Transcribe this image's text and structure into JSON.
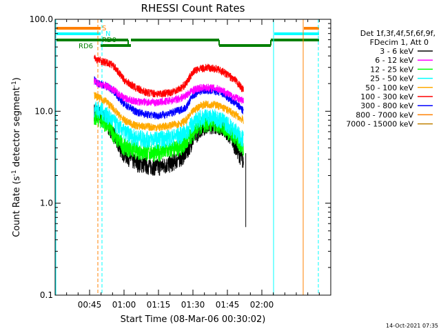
{
  "chart_data": {
    "type": "line",
    "title": "RHESSI Count Rates",
    "xlabel": "Start Time (08-Mar-06 00:30:02)",
    "ylabel_parts": [
      "Count Rate (s",
      "-1",
      " detector segment",
      "-1",
      ")"
    ],
    "y_scale": "log",
    "ylim": [
      0.1,
      100.0
    ],
    "y_ticks": [
      {
        "value": 0.1,
        "label": "0.1"
      },
      {
        "value": 1.0,
        "label": "1.0"
      },
      {
        "value": 10.0,
        "label": "10.0"
      },
      {
        "value": 100.0,
        "label": "100.0"
      }
    ],
    "xlim_minutes": [
      30,
      150
    ],
    "x_ticks": [
      {
        "value": 45,
        "label": "00:45"
      },
      {
        "value": 60,
        "label": "01:00"
      },
      {
        "value": 75,
        "label": "01:15"
      },
      {
        "value": 90,
        "label": "01:30"
      },
      {
        "value": 105,
        "label": "01:45"
      },
      {
        "value": 120,
        "label": "02:00"
      }
    ],
    "legend_header": [
      "Det 1f,3f,4f,5f,6f,9f,",
      "FDecim 1, Att 0"
    ],
    "series": [
      {
        "name": "3 - 6 keV",
        "color": "#000000",
        "points": [
          [
            47,
            10
          ],
          [
            49,
            9.5
          ],
          [
            52,
            8
          ],
          [
            55,
            6
          ],
          [
            57,
            4.5
          ],
          [
            60,
            3.5
          ],
          [
            65,
            2.8
          ],
          [
            70,
            2.6
          ],
          [
            75,
            2.5
          ],
          [
            80,
            2.7
          ],
          [
            85,
            3.2
          ],
          [
            87,
            3.6
          ],
          [
            90,
            5
          ],
          [
            93,
            6.5
          ],
          [
            96,
            7.2
          ],
          [
            100,
            7.2
          ],
          [
            103,
            6.8
          ],
          [
            106,
            5.5
          ],
          [
            109,
            4
          ],
          [
            112,
            2.8
          ]
        ]
      },
      {
        "name": "6 - 12 keV",
        "color": "#ff00ff",
        "points": [
          [
            47,
            21
          ],
          [
            49,
            20
          ],
          [
            52,
            19
          ],
          [
            55,
            17.5
          ],
          [
            57,
            16
          ],
          [
            60,
            14
          ],
          [
            65,
            12.8
          ],
          [
            70,
            12.6
          ],
          [
            75,
            12.5
          ],
          [
            80,
            13
          ],
          [
            85,
            14
          ],
          [
            87,
            15
          ],
          [
            90,
            17
          ],
          [
            93,
            18
          ],
          [
            96,
            18.2
          ],
          [
            100,
            17.8
          ],
          [
            103,
            17
          ],
          [
            106,
            15
          ],
          [
            109,
            14
          ],
          [
            112,
            13
          ]
        ]
      },
      {
        "name": "12 - 25 keV",
        "color": "#00ff00",
        "points": [
          [
            47,
            9
          ],
          [
            49,
            8.5
          ],
          [
            52,
            7.5
          ],
          [
            55,
            6
          ],
          [
            57,
            5
          ],
          [
            60,
            4.2
          ],
          [
            65,
            3.8
          ],
          [
            70,
            3.6
          ],
          [
            75,
            3.6
          ],
          [
            80,
            3.8
          ],
          [
            85,
            4.2
          ],
          [
            87,
            4.7
          ],
          [
            90,
            6
          ],
          [
            93,
            7
          ],
          [
            96,
            7.5
          ],
          [
            100,
            7.4
          ],
          [
            103,
            7
          ],
          [
            106,
            6
          ],
          [
            109,
            5
          ],
          [
            112,
            4
          ]
        ]
      },
      {
        "name": "25 - 50 keV",
        "color": "#00ffff",
        "points": [
          [
            47,
            11
          ],
          [
            49,
            10.5
          ],
          [
            52,
            9.5
          ],
          [
            55,
            8
          ],
          [
            57,
            7
          ],
          [
            60,
            6
          ],
          [
            65,
            5.2
          ],
          [
            70,
            5
          ],
          [
            75,
            5
          ],
          [
            80,
            5.2
          ],
          [
            85,
            5.6
          ],
          [
            87,
            6
          ],
          [
            90,
            7.5
          ],
          [
            93,
            8.5
          ],
          [
            96,
            8.8
          ],
          [
            100,
            8.6
          ],
          [
            103,
            8
          ],
          [
            106,
            7
          ],
          [
            109,
            6
          ],
          [
            112,
            5
          ]
        ]
      },
      {
        "name": "50 - 100 keV",
        "color": "#ffaa00",
        "points": [
          [
            47,
            15
          ],
          [
            49,
            14
          ],
          [
            52,
            13
          ],
          [
            55,
            11
          ],
          [
            57,
            9.5
          ],
          [
            60,
            8
          ],
          [
            65,
            7
          ],
          [
            70,
            6.8
          ],
          [
            75,
            6.7
          ],
          [
            80,
            7
          ],
          [
            85,
            7.5
          ],
          [
            87,
            8
          ],
          [
            90,
            10
          ],
          [
            93,
            11.5
          ],
          [
            96,
            12
          ],
          [
            100,
            11.8
          ],
          [
            103,
            11
          ],
          [
            106,
            10
          ],
          [
            109,
            9
          ],
          [
            112,
            8
          ]
        ]
      },
      {
        "name": "100 - 300 keV",
        "color": "#ff0000",
        "points": [
          [
            47,
            38
          ],
          [
            49,
            36
          ],
          [
            52,
            34
          ],
          [
            55,
            32
          ],
          [
            57,
            28
          ],
          [
            60,
            22
          ],
          [
            65,
            18
          ],
          [
            70,
            16
          ],
          [
            75,
            15.5
          ],
          [
            80,
            16
          ],
          [
            85,
            18
          ],
          [
            87,
            20
          ],
          [
            90,
            27
          ],
          [
            93,
            29
          ],
          [
            96,
            30
          ],
          [
            100,
            29
          ],
          [
            103,
            27
          ],
          [
            106,
            24
          ],
          [
            109,
            21
          ],
          [
            112,
            17
          ]
        ]
      },
      {
        "name": "300 - 800 keV",
        "color": "#0000ff",
        "points": [
          [
            47,
            22
          ],
          [
            49,
            20
          ],
          [
            52,
            19
          ],
          [
            55,
            17
          ],
          [
            57,
            15
          ],
          [
            60,
            12
          ],
          [
            65,
            10
          ],
          [
            70,
            9.2
          ],
          [
            75,
            9
          ],
          [
            80,
            9.5
          ],
          [
            85,
            10.5
          ],
          [
            87,
            11
          ],
          [
            90,
            15
          ],
          [
            93,
            16.5
          ],
          [
            96,
            17
          ],
          [
            100,
            16.5
          ],
          [
            103,
            15.5
          ],
          [
            106,
            13.5
          ],
          [
            109,
            12
          ],
          [
            112,
            10
          ]
        ]
      },
      {
        "name": "800 - 7000 keV",
        "color": "#ff8000",
        "points": []
      },
      {
        "name": "7000 - 15000 keV",
        "color": "#c08000",
        "points": []
      }
    ],
    "markers": {
      "s_label": "S",
      "n_label": "N",
      "rd0_label": "RD0",
      "rd6_label": "RD6"
    }
  },
  "footer_date": "14-Oct-2021 07:35"
}
